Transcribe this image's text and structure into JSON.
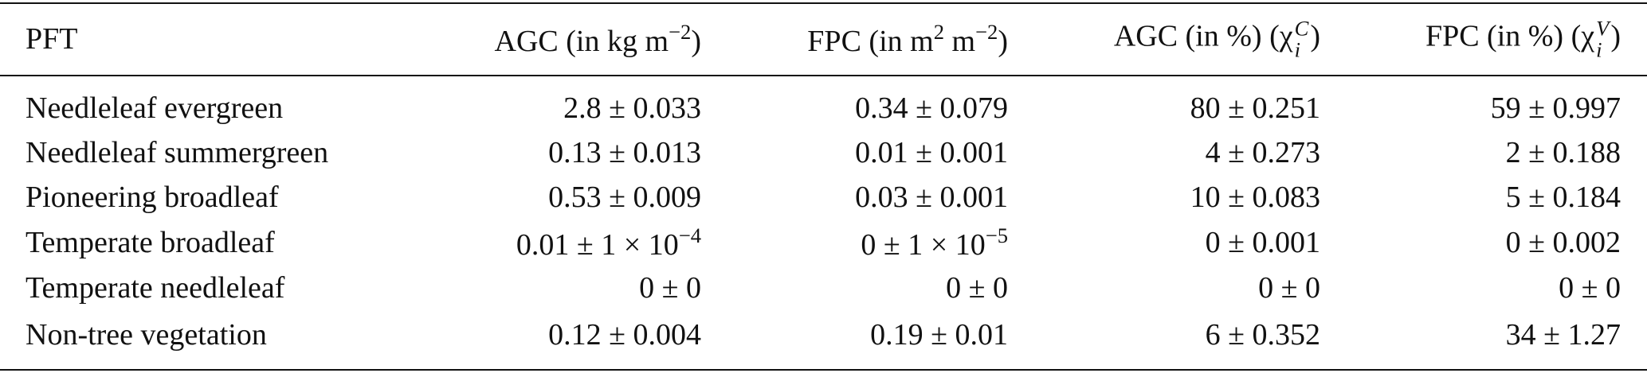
{
  "table": {
    "header": [
      "PFT",
      [
        {
          "text": "AGC (in kg m"
        },
        {
          "sup": "−2"
        },
        {
          "text": ")"
        }
      ],
      [
        {
          "text": "FPC (in m"
        },
        {
          "sup": "2"
        },
        {
          "text": " m"
        },
        {
          "sup": "−2"
        },
        {
          "text": ")"
        }
      ],
      [
        {
          "text": "AGC (in %) (χ"
        },
        {
          "sub": "i",
          "sup": "C"
        },
        {
          "text": ")"
        }
      ],
      [
        {
          "text": "FPC (in %) (χ"
        },
        {
          "sub": "i",
          "sup": "V"
        },
        {
          "text": ")"
        }
      ]
    ],
    "rows": [
      [
        "Needleleaf evergreen",
        "2.8 ± 0.033",
        "0.34 ± 0.079",
        "80 ± 0.251",
        "59 ± 0.997"
      ],
      [
        "Needleleaf summergreen",
        "0.13 ± 0.013",
        "0.01 ± 0.001",
        "4 ± 0.273",
        "2 ± 0.188"
      ],
      [
        "Pioneering broadleaf",
        "0.53 ± 0.009",
        "0.03 ± 0.001",
        "10 ± 0.083",
        "5 ± 0.184"
      ],
      [
        "Temperate broadleaf",
        [
          {
            "text": "0.01 ± 1 × 10"
          },
          {
            "sup": "−4"
          }
        ],
        [
          {
            "text": "0 ± 1 × 10"
          },
          {
            "sup": "−5"
          }
        ],
        "0 ± 0.001",
        "0 ± 0.002"
      ],
      [
        "Temperate needleleaf",
        "0 ± 0",
        "0 ± 0",
        "0 ± 0",
        "0 ± 0"
      ],
      [
        "Non-tree vegetation",
        "0.12 ± 0.004",
        "0.19 ± 0.01",
        "6 ± 0.352",
        "34 ± 1.27"
      ]
    ]
  }
}
